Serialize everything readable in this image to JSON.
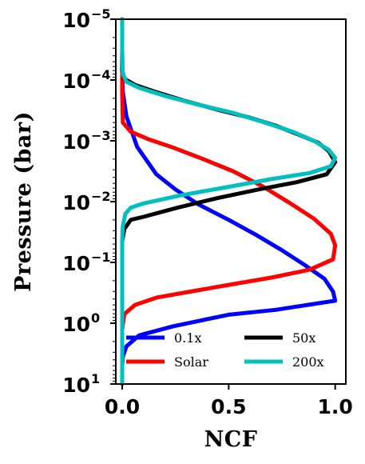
{
  "chart_data": {
    "type": "line",
    "xlabel": "NCF",
    "ylabel": "Pressure (bar)",
    "xlim": [
      -0.03,
      1.05
    ],
    "ylim_log10": [
      1,
      -5
    ],
    "y_scale": "log",
    "y_inverted": true,
    "grid": false,
    "legend_placement": "bottom-right",
    "legend_columns": 2,
    "x_ticks": [
      {
        "value": 0.0,
        "label": "0.0"
      },
      {
        "value": 0.5,
        "label": "0.5"
      },
      {
        "value": 1.0,
        "label": "1.0"
      }
    ],
    "y_ticks": [
      {
        "exp": -5,
        "base": "10",
        "sup": "−5"
      },
      {
        "exp": -4,
        "base": "10",
        "sup": "−4"
      },
      {
        "exp": -3,
        "base": "10",
        "sup": "−3"
      },
      {
        "exp": -2,
        "base": "10",
        "sup": "−2"
      },
      {
        "exp": -1,
        "base": "10",
        "sup": "−1"
      },
      {
        "exp": 0,
        "base": "10",
        "sup": "0"
      },
      {
        "exp": 1,
        "base": "10",
        "sup": "1"
      }
    ],
    "series": [
      {
        "name": "0.1x",
        "color": "#0000ff",
        "points": [
          [
            0.0,
            -5
          ],
          [
            0.0,
            -4.2
          ],
          [
            0.003,
            -3.8
          ],
          [
            0.02,
            -3.4
          ],
          [
            0.07,
            -2.9
          ],
          [
            0.16,
            -2.45
          ],
          [
            0.25,
            -2.2
          ],
          [
            0.36,
            -1.95
          ],
          [
            0.5,
            -1.7
          ],
          [
            0.63,
            -1.45
          ],
          [
            0.75,
            -1.2
          ],
          [
            0.86,
            -0.95
          ],
          [
            0.95,
            -0.73
          ],
          [
            0.99,
            -0.52
          ],
          [
            1.0,
            -0.37
          ],
          [
            0.72,
            -0.22
          ],
          [
            0.5,
            -0.14
          ],
          [
            0.24,
            0.05
          ],
          [
            0.08,
            0.2
          ],
          [
            0.02,
            0.38
          ],
          [
            0.003,
            0.55
          ],
          [
            0.0,
            0.7
          ],
          [
            0.0,
            1
          ]
        ]
      },
      {
        "name": "Solar",
        "color": "#ff0000",
        "points": [
          [
            0.0,
            -5
          ],
          [
            0.0,
            -4.3
          ],
          [
            0.0,
            -3.8
          ],
          [
            0.003,
            -3.3
          ],
          [
            0.04,
            -3.15
          ],
          [
            0.12,
            -3.03
          ],
          [
            0.23,
            -2.9
          ],
          [
            0.38,
            -2.7
          ],
          [
            0.52,
            -2.5
          ],
          [
            0.66,
            -2.25
          ],
          [
            0.79,
            -1.97
          ],
          [
            0.9,
            -1.72
          ],
          [
            0.98,
            -1.47
          ],
          [
            1.0,
            -1.28
          ],
          [
            0.99,
            -1.05
          ],
          [
            0.88,
            -0.88
          ],
          [
            0.7,
            -0.75
          ],
          [
            0.5,
            -0.63
          ],
          [
            0.32,
            -0.52
          ],
          [
            0.16,
            -0.42
          ],
          [
            0.06,
            -0.3
          ],
          [
            0.01,
            -0.15
          ],
          [
            0.0,
            0.1
          ],
          [
            0.0,
            0.5
          ],
          [
            0.0,
            1
          ]
        ]
      },
      {
        "name": "50x",
        "color": "#000000",
        "points": [
          [
            0.0,
            -5
          ],
          [
            0.0,
            -4.4
          ],
          [
            0.0,
            -4.15
          ],
          [
            0.01,
            -4.02
          ],
          [
            0.06,
            -3.92
          ],
          [
            0.16,
            -3.8
          ],
          [
            0.3,
            -3.65
          ],
          [
            0.46,
            -3.5
          ],
          [
            0.6,
            -3.38
          ],
          [
            0.72,
            -3.25
          ],
          [
            0.83,
            -3.1
          ],
          [
            0.92,
            -2.97
          ],
          [
            0.97,
            -2.83
          ],
          [
            1.0,
            -2.65
          ],
          [
            0.96,
            -2.45
          ],
          [
            0.82,
            -2.32
          ],
          [
            0.64,
            -2.2
          ],
          [
            0.45,
            -2.06
          ],
          [
            0.26,
            -1.9
          ],
          [
            0.1,
            -1.75
          ],
          [
            0.04,
            -1.7
          ],
          [
            0.01,
            -1.55
          ],
          [
            0.0,
            -1.35
          ],
          [
            0.0,
            -1
          ],
          [
            0.0,
            0
          ],
          [
            0.0,
            1
          ]
        ]
      },
      {
        "name": "200x",
        "color": "#00bfbf",
        "points": [
          [
            0.0,
            -5
          ],
          [
            0.0,
            -4.5
          ],
          [
            0.003,
            -4.1
          ],
          [
            0.02,
            -3.97
          ],
          [
            0.08,
            -3.87
          ],
          [
            0.2,
            -3.74
          ],
          [
            0.35,
            -3.6
          ],
          [
            0.52,
            -3.46
          ],
          [
            0.67,
            -3.3
          ],
          [
            0.8,
            -3.15
          ],
          [
            0.9,
            -3.0
          ],
          [
            0.97,
            -2.85
          ],
          [
            1.0,
            -2.72
          ],
          [
            0.98,
            -2.58
          ],
          [
            0.88,
            -2.47
          ],
          [
            0.7,
            -2.37
          ],
          [
            0.48,
            -2.23
          ],
          [
            0.27,
            -2.1
          ],
          [
            0.1,
            -1.97
          ],
          [
            0.04,
            -1.9
          ],
          [
            0.015,
            -1.8
          ],
          [
            0.003,
            -1.6
          ],
          [
            0.0,
            -1.35
          ],
          [
            0.0,
            -1
          ],
          [
            0.0,
            0
          ],
          [
            0.0,
            1
          ]
        ]
      }
    ]
  }
}
